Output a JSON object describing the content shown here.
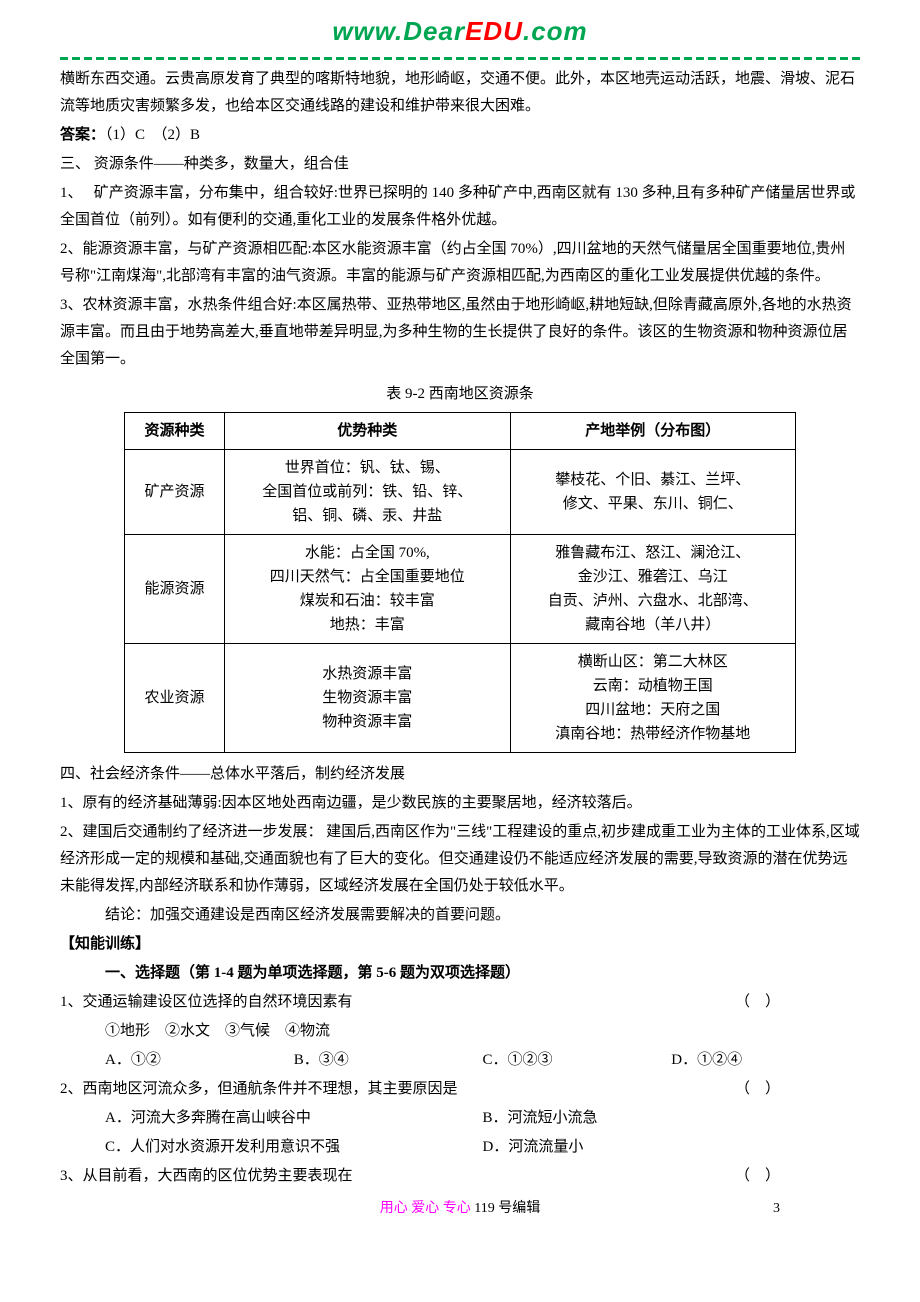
{
  "header": {
    "www": "www.",
    "dear": "Dear",
    "edu": "EDU",
    "com": ".com"
  },
  "p1": "横断东西交通。云贵高原发育了典型的喀斯特地貌，地形崎岖，交通不便。此外，本区地壳运动活跃，地震、滑坡、泥石流等地质灾害频繁多发，也给本区交通线路的建设和维护带来很大困难。",
  "answer_label": "答案：",
  "answer_text": "（1）C　（2）B",
  "sec3_title": "三、 资源条件——种类多，数量大，组合佳",
  "sec3_1": "1、　 矿产资源丰富，分布集中，组合较好:世界已探明的 140 多种矿产中,西南区就有 130 多种,且有多种矿产储量居世界或全国首位（前列）。如有便利的交通,重化工业的发展条件格外优越。",
  "sec3_2": "2、能源资源丰富，与矿产资源相匹配:本区水能资源丰富（约占全国 70%）,四川盆地的天然气储量居全国重要地位,贵州号称\"江南煤海\",北部湾有丰富的油气资源。丰富的能源与矿产资源相匹配,为西南区的重化工业发展提供优越的条件。",
  "sec3_3": "3、农林资源丰富，水热条件组合好:本区属热带、亚热带地区,虽然由于地形崎岖,耕地短缺,但除青藏高原外,各地的水热资源丰富。而且由于地势高差大,垂直地带差异明显,为多种生物的生长提供了良好的条件。该区的生物资源和物种资源位居全国第一。",
  "table": {
    "title": "表 9-2   西南地区资源条",
    "headers": [
      "资源种类",
      "优势种类",
      "产地举例（分布图）"
    ],
    "row1": {
      "c1": "矿产资源",
      "c2": "世界首位：钒、钛、锡、\n全国首位或前列：铁、铅、锌、\n铝、铜、磷、汞、井盐",
      "c3": "攀枝花、个旧、綦江、兰坪、修文、平果、东川、铜仁、"
    },
    "row2": {
      "c1": "能源资源",
      "c2": "水能：占全国 70%, \n四川天然气：占全国重要地位\n煤炭和石油：较丰富\n地热：丰富",
      "c3": "雅鲁藏布江、怒江、澜沧江、金沙江、雅砻江、乌江\n自贡、泸州、六盘水、北部湾、藏南谷地（羊八井）"
    },
    "row3": {
      "c1": "农业资源",
      "c2": "水热资源丰富\n生物资源丰富\n物种资源丰富",
      "c3": "横断山区：第二大林区\n云南：动植物王国\n四川盆地：天府之国\n滇南谷地：热带经济作物基地"
    }
  },
  "sec4_title": "四、社会经济条件——总体水平落后，制约经济发展",
  "sec4_1": "1、原有的经济基础薄弱:因本区地处西南边疆，是少数民族的主要聚居地，经济较落后。",
  "sec4_2": "2、建国后交通制约了经济进一步发展：  建国后,西南区作为\"三线\"工程建设的重点,初步建成重工业为主体的工业体系,区域经济形成一定的规模和基础,交通面貌也有了巨大的变化。但交通建设仍不能适应经济发展的需要,导致资源的潜在优势远未能得发挥,内部经济联系和协作薄弱，区域经济发展在全国仍处于较低水平。",
  "conclusion": "结论：加强交通建设是西南区经济发展需要解决的首要问题。",
  "zhineng": "【知能训练】",
  "quiz_inst": "一、选择题（第 1-4 题为单项选择题，第 5-6 题为双项选择题）",
  "q1": {
    "stem": "1、交通运输建设区位选择的自然环境因素有",
    "paren": "（　）",
    "sub": "①地形　②水文　③气候　④物流",
    "A": "A．①②",
    "B": "B．③④",
    "C": "C．①②③",
    "D": "D．①②④"
  },
  "q2": {
    "stem": "2、西南地区河流众多，但通航条件并不理想，其主要原因是",
    "paren": "（　）",
    "A": "A．河流大多奔腾在高山峡谷中",
    "B": "B．河流短小流急",
    "C": "C．人们对水资源开发利用意识不强",
    "D": "D．河流流量小"
  },
  "q3": {
    "stem": "3、从目前看，大西南的区位优势主要表现在",
    "paren": "（　）"
  },
  "footer": {
    "motto": "用心 爱心 专心",
    "editor": "   119 号编辑",
    "page": "3"
  }
}
